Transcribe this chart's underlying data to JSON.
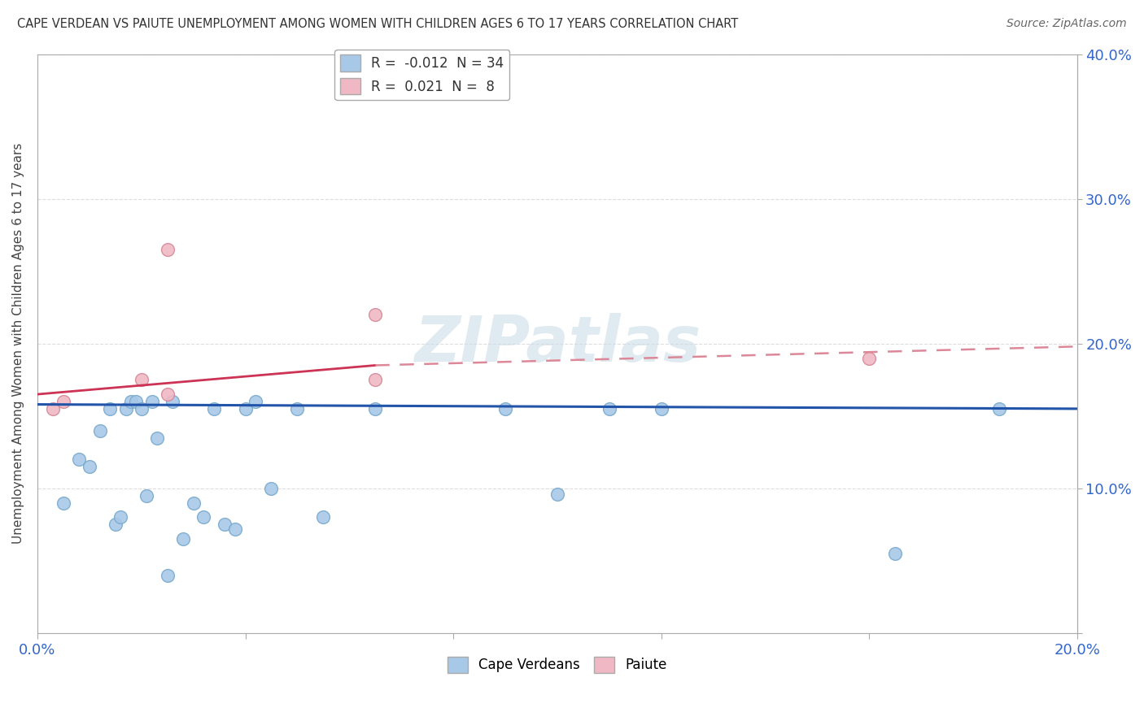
{
  "title": "CAPE VERDEAN VS PAIUTE UNEMPLOYMENT AMONG WOMEN WITH CHILDREN AGES 6 TO 17 YEARS CORRELATION CHART",
  "source": "Source: ZipAtlas.com",
  "ylabel": "Unemployment Among Women with Children Ages 6 to 17 years",
  "xlim": [
    0.0,
    0.2
  ],
  "ylim": [
    0.0,
    0.4
  ],
  "xtick_positions": [
    0.0,
    0.04,
    0.08,
    0.12,
    0.16,
    0.2
  ],
  "xtick_labels": [
    "0.0%",
    "",
    "",
    "",
    "",
    "20.0%"
  ],
  "ytick_positions": [
    0.0,
    0.1,
    0.2,
    0.3,
    0.4
  ],
  "ytick_labels_right": [
    "",
    "10.0%",
    "20.0%",
    "30.0%",
    "40.0%"
  ],
  "cape_verdean_R": -0.012,
  "cape_verdean_N": 34,
  "paiute_R": 0.021,
  "paiute_N": 8,
  "cape_verdean_color": "#a8c8e8",
  "cape_verdean_edge": "#7aaacc",
  "paiute_color": "#f0b8c4",
  "paiute_edge": "#d48898",
  "cape_verdean_line_color": "#2255aa",
  "paiute_solid_color": "#cc3355",
  "paiute_dashed_color": "#dd8899",
  "watermark_color": "#ccdde8",
  "grid_color": "#dddddd",
  "cape_verdean_x": [
    0.005,
    0.008,
    0.01,
    0.012,
    0.014,
    0.015,
    0.016,
    0.017,
    0.018,
    0.019,
    0.02,
    0.021,
    0.022,
    0.023,
    0.025,
    0.026,
    0.028,
    0.03,
    0.032,
    0.034,
    0.036,
    0.038,
    0.04,
    0.042,
    0.045,
    0.05,
    0.055,
    0.065,
    0.09,
    0.1,
    0.11,
    0.12,
    0.165,
    0.185
  ],
  "cape_verdean_y": [
    0.09,
    0.12,
    0.115,
    0.14,
    0.155,
    0.075,
    0.08,
    0.155,
    0.16,
    0.16,
    0.155,
    0.095,
    0.16,
    0.135,
    0.04,
    0.16,
    0.065,
    0.09,
    0.08,
    0.155,
    0.075,
    0.072,
    0.155,
    0.16,
    0.1,
    0.155,
    0.08,
    0.155,
    0.155,
    0.096,
    0.155,
    0.155,
    0.055,
    0.155
  ],
  "paiute_x": [
    0.003,
    0.005,
    0.02,
    0.025,
    0.025,
    0.065,
    0.065,
    0.16
  ],
  "paiute_y": [
    0.155,
    0.16,
    0.175,
    0.165,
    0.265,
    0.175,
    0.22,
    0.19
  ],
  "paiute_solid_xrange": [
    0.0,
    0.065
  ],
  "paiute_dashed_xrange": [
    0.065,
    0.2
  ],
  "cv_line_ystart": 0.158,
  "cv_line_yend": 0.155,
  "paiute_line_ystart": 0.165,
  "paiute_line_yend": 0.185
}
